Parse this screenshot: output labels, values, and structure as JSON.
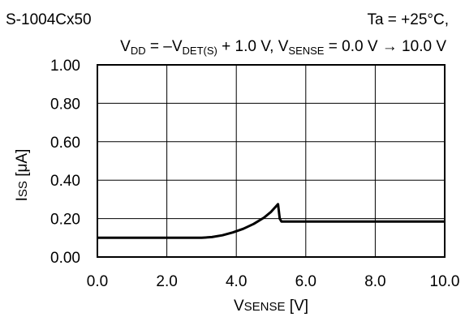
{
  "chart_data": {
    "type": "line",
    "title_left": "S-1004Cx50",
    "title_right": "Ta = +25°C,",
    "condition": {
      "vdd_V": "V",
      "vdd_sub": "DD",
      "eq": " = –",
      "vdet_V": "V",
      "vdet_sub": "DET(S)",
      "mid": " + 1.0 V, ",
      "vsense_V": "V",
      "vsense_sub": "SENSE",
      "tail": " = 0.0 V → 10.0 V"
    },
    "ylabel": "ISS [μA]",
    "xlabel": "VSENSE [V]",
    "xlabel_parts": {
      "V": "V",
      "sub": "SENSE",
      "unit": " [V]"
    },
    "ylabel_parts": {
      "I": "I",
      "sub": "SS",
      "unit": " [μA]"
    },
    "xlim": [
      0,
      10
    ],
    "ylim": [
      0,
      1
    ],
    "xticks": [
      "0.0",
      "2.0",
      "4.0",
      "6.0",
      "8.0",
      "10.0"
    ],
    "yticks": [
      "0.00",
      "0.20",
      "0.40",
      "0.60",
      "0.80",
      "1.00"
    ],
    "grid": true,
    "series": [
      {
        "color": "#000000",
        "x": [
          0.0,
          3.0,
          3.3,
          3.6,
          3.9,
          4.2,
          4.5,
          4.8,
          5.0,
          5.2,
          5.25,
          5.3,
          10.0
        ],
        "y": [
          0.1,
          0.1,
          0.104,
          0.113,
          0.128,
          0.147,
          0.172,
          0.205,
          0.235,
          0.275,
          0.2,
          0.185,
          0.185
        ]
      }
    ]
  }
}
